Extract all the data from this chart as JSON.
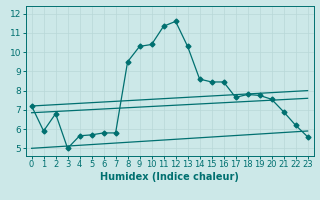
{
  "xlabel": "Humidex (Indice chaleur)",
  "bg_color": "#cce8e8",
  "grid_color": "#b8d8d8",
  "line_color": "#007070",
  "xlim": [
    -0.5,
    23.5
  ],
  "ylim": [
    4.6,
    12.4
  ],
  "xticks": [
    0,
    1,
    2,
    3,
    4,
    5,
    6,
    7,
    8,
    9,
    10,
    11,
    12,
    13,
    14,
    15,
    16,
    17,
    18,
    19,
    20,
    21,
    22,
    23
  ],
  "yticks": [
    5,
    6,
    7,
    8,
    9,
    10,
    11,
    12
  ],
  "main_x": [
    0,
    1,
    2,
    3,
    4,
    5,
    6,
    7,
    8,
    9,
    10,
    11,
    12,
    13,
    14,
    15,
    16,
    17,
    18,
    19,
    20,
    21,
    22,
    23
  ],
  "main_y": [
    7.2,
    5.9,
    6.8,
    5.0,
    5.65,
    5.7,
    5.8,
    5.8,
    9.5,
    10.3,
    10.4,
    11.35,
    11.6,
    10.3,
    8.6,
    8.45,
    8.45,
    7.65,
    7.8,
    7.75,
    7.55,
    6.9,
    6.2,
    5.6
  ],
  "line1_start": 7.2,
  "line1_end": 8.0,
  "line2_start": 6.85,
  "line2_end": 7.6,
  "line3_start": 5.0,
  "line3_end": 5.9,
  "marker_size": 2.5,
  "line_width": 0.9,
  "font_size": 6.5
}
